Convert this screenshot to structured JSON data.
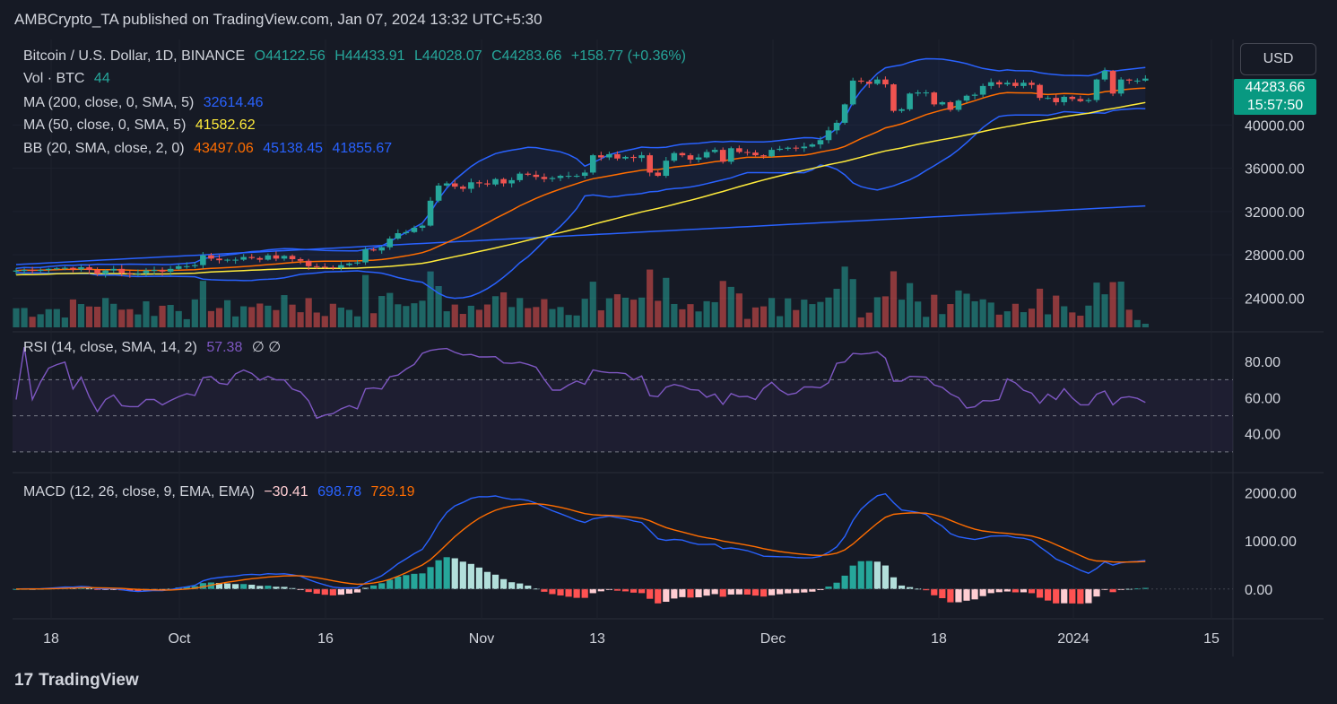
{
  "header": {
    "publisher": "AMBCrypto_TA published on TradingView.com, Jan 07, 2024 13:32 UTC+5:30"
  },
  "legend": {
    "symbol": "Bitcoin / U.S. Dollar, 1D, BINANCE",
    "open": "O44122.56",
    "high": "H44433.91",
    "low": "L44028.07",
    "close": "C44283.66",
    "change": "+158.77 (+0.36%)",
    "vol_label": "Vol · BTC",
    "vol_value": "44",
    "ma200_label": "MA (200, close, 0, SMA, 5)",
    "ma200_value": "32614.46",
    "ma50_label": "MA (50, close, 0, SMA, 5)",
    "ma50_value": "41582.62",
    "bb_label": "BB (20, SMA, close, 2, 0)",
    "bb_mid": "43497.06",
    "bb_up": "45138.45",
    "bb_low": "41855.67",
    "rsi_label": "RSI (14, close, SMA, 14, 2)",
    "rsi_value": "57.38",
    "rsi_extra": "∅ ∅",
    "macd_label": "MACD (12, 26, close, 9, EMA, EMA)",
    "macd_hist": "−30.41",
    "macd_line": "698.78",
    "macd_signal": "729.19"
  },
  "currency_button": "USD",
  "price_tag": {
    "price": "44283.66",
    "countdown": "15:57:50"
  },
  "footer": {
    "brand": "TradingView",
    "logo": "17"
  },
  "colors": {
    "up": "#26a69a",
    "down": "#ef5350",
    "ma200": "#2962ff",
    "ma50": "#ffeb3b",
    "bb_mid": "#ff6d00",
    "bb_band": "#2962ff",
    "rsi": "#7e57c2",
    "macd": "#2962ff",
    "signal": "#ff6d00"
  },
  "chart_data": {
    "type": "candlestick",
    "x_tick_labels": [
      "18",
      "Oct",
      "16",
      "Nov",
      "13",
      "Dec",
      "18",
      "2024",
      "15"
    ],
    "price_axis": {
      "ticks": [
        "40000.00",
        "36000.00",
        "32000.00",
        "28000.00",
        "24000.00"
      ],
      "range": [
        21300,
        47900
      ]
    },
    "rsi_axis": {
      "ticks": [
        "80.00",
        "60.00",
        "40.00"
      ],
      "levels": [
        70,
        50,
        30
      ],
      "range": [
        19,
        96
      ]
    },
    "macd_axis": {
      "ticks": [
        "2000.00",
        "1000.00",
        "0.00"
      ],
      "range": [
        -600,
        2400
      ]
    },
    "closes": [
      26550,
      26600,
      26550,
      26600,
      26700,
      26750,
      26800,
      26650,
      26850,
      26600,
      26250,
      26550,
      26700,
      26300,
      26250,
      26300,
      26550,
      26600,
      26450,
      26700,
      26950,
      26950,
      27050,
      27950,
      27650,
      27500,
      27550,
      27550,
      27800,
      27700,
      27550,
      27950,
      27650,
      27900,
      27600,
      27450,
      26950,
      26900,
      26850,
      26800,
      27050,
      27200,
      27300,
      28500,
      28400,
      28700,
      29500,
      30000,
      30100,
      30500,
      30700,
      33000,
      34400,
      34600,
      34300,
      34100,
      34700,
      34600,
      34500,
      35000,
      34600,
      34900,
      35500,
      35400,
      35200,
      35000,
      35100,
      35300,
      35300,
      35300,
      35600,
      37200,
      37000,
      37300,
      36900,
      37050,
      36950,
      37200,
      35600,
      35300,
      36700,
      37400,
      37200,
      36800,
      37000,
      37500,
      37700,
      36600,
      37850,
      37500,
      37450,
      37200,
      37100,
      37700,
      37800,
      37900,
      37850,
      38000,
      38200,
      38600,
      39500,
      40200,
      41900,
      44100,
      44000,
      43800,
      44200,
      43750,
      41300,
      41450,
      42900,
      43000,
      43000,
      41900,
      42100,
      41400,
      42250,
      42700,
      42800,
      43600,
      43950,
      43750,
      43900,
      43600,
      43900,
      43700,
      42500,
      42500,
      42100,
      42600,
      42400,
      42200,
      42300,
      44200,
      45000,
      42900,
      44200,
      44100,
      44100,
      44283
    ],
    "volume_description": "daily volume bars (BTC) under price pane, colored by candle direction",
    "rsi_description": "RSI (14) line between ~43 and ~89, last 57.38",
    "macd_description": "MACD line peaks ~2200 in early Dec; histogram negative in late Dec, last −30.41"
  }
}
